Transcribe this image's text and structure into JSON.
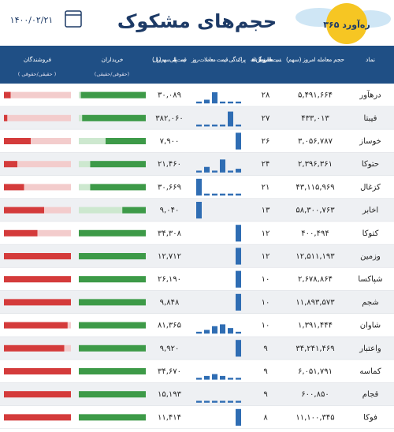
{
  "header": {
    "title": "حجم‌های مشکوک",
    "date": "۱۴۰۰/۰۲/۲۱",
    "logo": "ره‌آورد ۳۶۵"
  },
  "table": {
    "columns": [
      "نماد",
      "حجم معامله امروز (سهم)",
      "نسبت معامله امروز به میانگین ۱ ماهه",
      "پراکندگی قیمت معاملات روز",
      "قیمت پایانی سهم (ریال)",
      "خریداران",
      "فروشندگان"
    ],
    "column_notes": {
      "buyers": "(حقوقی/حقیقی)",
      "sellers": "( حقیقی/حقوقی )"
    },
    "rows": [
      {
        "symbol": "درهآور",
        "volume": "۵,۴۹۱,۶۶۴",
        "ratio": "۲۸",
        "price": "۳۰,۰۸۹",
        "dispersion": [
          1,
          2,
          6,
          1,
          1,
          1
        ],
        "buy_individual": 97,
        "sell_individual": 10
      },
      {
        "symbol": "فیبتا",
        "volume": "۴۳۳,۰۱۳",
        "ratio": "۲۷",
        "price": "۳۸۲,۰۶۰",
        "dispersion": [
          1,
          1,
          1,
          1,
          8,
          1
        ],
        "buy_individual": 95,
        "sell_individual": 5
      },
      {
        "symbol": "خوساز",
        "volume": "۳,۰۵۶,۷۸۷",
        "ratio": "۲۶",
        "price": "۷,۹۰۰",
        "dispersion": [
          0,
          0,
          0,
          0,
          0,
          9
        ],
        "buy_individual": 60,
        "sell_individual": 40
      },
      {
        "symbol": "حتوکا",
        "volume": "۲,۳۹۶,۳۶۱",
        "ratio": "۲۴",
        "price": "۲۱,۴۶۰",
        "dispersion": [
          1,
          3,
          1,
          7,
          1,
          2
        ],
        "buy_individual": 83,
        "sell_individual": 20
      },
      {
        "symbol": "کزغال",
        "volume": "۴۳,۱۱۵,۹۶۹",
        "ratio": "۲۱",
        "price": "۳۰,۶۶۹",
        "dispersion": [
          9,
          1,
          1,
          1,
          1,
          1
        ],
        "buy_individual": 83,
        "sell_individual": 30
      },
      {
        "symbol": "اخابر",
        "volume": "۵۸,۳۰۰,۷۶۳",
        "ratio": "۱۳",
        "price": "۹,۰۴۰",
        "dispersion": [
          9,
          0,
          0,
          0,
          0,
          0
        ],
        "buy_individual": 35,
        "sell_individual": 60
      },
      {
        "symbol": "کتوکا",
        "volume": "۴۰۰,۴۹۴",
        "ratio": "۱۲",
        "price": "۳۴,۳۰۸",
        "dispersion": [
          0,
          0,
          0,
          0,
          0,
          9
        ],
        "buy_individual": 100,
        "sell_individual": 50
      },
      {
        "symbol": "وزمین",
        "volume": "۱۲,۵۱۱,۱۹۳",
        "ratio": "۱۲",
        "price": "۱۲,۷۱۲",
        "dispersion": [
          0,
          0,
          0,
          0,
          0,
          9
        ],
        "buy_individual": 100,
        "sell_individual": 100
      },
      {
        "symbol": "شپاکسا",
        "volume": "۲,۶۷۸,۸۶۴",
        "ratio": "۱۰",
        "price": "۲۶,۱۹۰",
        "dispersion": [
          0,
          0,
          0,
          0,
          0,
          9
        ],
        "buy_individual": 100,
        "sell_individual": 100
      },
      {
        "symbol": "شجم",
        "volume": "۱۱,۸۹۳,۵۷۳",
        "ratio": "۱۰",
        "price": "۹,۸۴۸",
        "dispersion": [
          0,
          0,
          0,
          0,
          0,
          9
        ],
        "buy_individual": 100,
        "sell_individual": 100
      },
      {
        "symbol": "شاوان",
        "volume": "۱,۳۹۱,۴۴۴",
        "ratio": "۱۰",
        "price": "۸۱,۳۶۵",
        "dispersion": [
          1,
          2,
          4,
          5,
          3,
          1
        ],
        "buy_individual": 100,
        "sell_individual": 95
      },
      {
        "symbol": "واعتبار",
        "volume": "۳۴,۲۴۱,۴۶۹",
        "ratio": "۹",
        "price": "۹,۹۲۰",
        "dispersion": [
          0,
          0,
          0,
          0,
          0,
          9
        ],
        "buy_individual": 100,
        "sell_individual": 90
      },
      {
        "symbol": "کماسه",
        "volume": "۶,۰۵۱,۷۹۱",
        "ratio": "۹",
        "price": "۳۴,۶۷۰",
        "dispersion": [
          1,
          2,
          3,
          2,
          1,
          1
        ],
        "buy_individual": 100,
        "sell_individual": 100
      },
      {
        "symbol": "قجام",
        "volume": "۶۰۰,۸۵۰",
        "ratio": "۹",
        "price": "۱۵,۱۹۳",
        "dispersion": [
          1,
          1,
          1,
          1,
          1,
          1
        ],
        "buy_individual": 100,
        "sell_individual": 100
      },
      {
        "symbol": "فوکا",
        "volume": "۱۱,۱۰۰,۳۴۵",
        "ratio": "۸",
        "price": "۱۱,۴۱۴",
        "dispersion": [
          0,
          0,
          0,
          0,
          0,
          9
        ],
        "buy_individual": 100,
        "sell_individual": 100
      }
    ]
  }
}
